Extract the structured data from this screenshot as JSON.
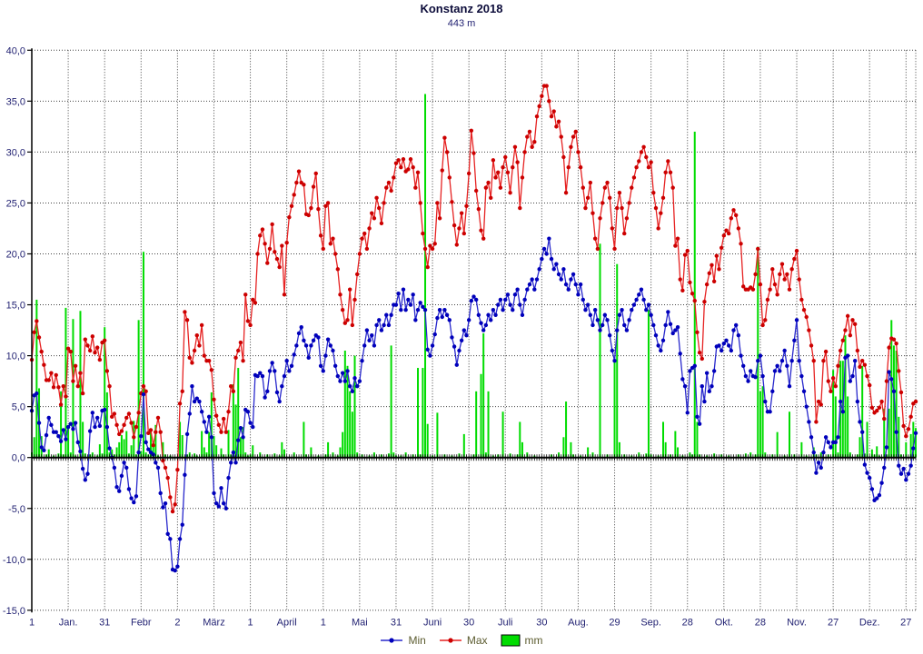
{
  "header": {
    "title": "Konstanz 2018",
    "subtitle": "443 m"
  },
  "legend": {
    "min_label": "Min",
    "max_label": "Max",
    "mm_label": "mm"
  },
  "colors": {
    "max_line": "#e62222",
    "max_dot": "#cc0000",
    "min_line": "#2828cc",
    "min_dot": "#0000bb",
    "mm_bar": "#00dc00",
    "axis": "#000000",
    "grid": "#444444",
    "tick_label": "#232373",
    "legend_text": "#5c5c30"
  },
  "chart_data": {
    "type": "line+bar",
    "title": "Konstanz 2018",
    "subtitle": "443 m",
    "ylabel": "",
    "xlabel": "",
    "ylim": [
      -15,
      40
    ],
    "ytick_step": 5,
    "ytick_labels": [
      "40,0",
      "35,0",
      "30,0",
      "25,0",
      "20,0",
      "15,0",
      "10,0",
      "5,0",
      "0,0",
      "-5,0",
      "-10,0",
      "-15,0"
    ],
    "ytick_values": [
      40,
      35,
      30,
      25,
      20,
      15,
      10,
      5,
      0,
      -5,
      -10,
      -15
    ],
    "xticks": [
      {
        "day": 1,
        "label": "1"
      },
      {
        "day": 16,
        "label": "Jan."
      },
      {
        "day": 31,
        "label": "31"
      },
      {
        "day": 46,
        "label": "Febr"
      },
      {
        "day": 61,
        "label": "2"
      },
      {
        "day": 76,
        "label": "März"
      },
      {
        "day": 91,
        "label": "1"
      },
      {
        "day": 106,
        "label": "April"
      },
      {
        "day": 121,
        "label": "1"
      },
      {
        "day": 136,
        "label": "Mai"
      },
      {
        "day": 151,
        "label": "31"
      },
      {
        "day": 166,
        "label": "Juni"
      },
      {
        "day": 181,
        "label": "30"
      },
      {
        "day": 196,
        "label": "Juli"
      },
      {
        "day": 211,
        "label": "30"
      },
      {
        "day": 226,
        "label": "Aug."
      },
      {
        "day": 241,
        "label": "29"
      },
      {
        "day": 256,
        "label": "Sep."
      },
      {
        "day": 271,
        "label": "28"
      },
      {
        "day": 286,
        "label": "Okt."
      },
      {
        "day": 301,
        "label": "28"
      },
      {
        "day": 316,
        "label": "Nov."
      },
      {
        "day": 331,
        "label": "27"
      },
      {
        "day": 346,
        "label": "Dez."
      },
      {
        "day": 361,
        "label": "27"
      }
    ],
    "grid": true,
    "legend_position": "bottom",
    "series": [
      {
        "name": "Max",
        "type": "line",
        "color_key": "max",
        "values": [
          9.6,
          12.3,
          13.4,
          11.8,
          10.4,
          9.1,
          7.6,
          7.6,
          8.3,
          6.9,
          8.1,
          6.9,
          5.2,
          7.0,
          6.0,
          10.7,
          10.4,
          7.5,
          9.0,
          7.0,
          8.3,
          6.3,
          11.6,
          11.0,
          10.5,
          11.9,
          10.3,
          10.8,
          9.6,
          11.3,
          11.5,
          8.5,
          7.0,
          4.0,
          4.3,
          3.2,
          2.3,
          2.6,
          3.2,
          3.9,
          4.3,
          3.4,
          2.0,
          3.0,
          4.4,
          6.3,
          7.0,
          6.5,
          2.4,
          2.7,
          1.2,
          2.5,
          3.9,
          2.5,
          -0.3,
          -1.0,
          -2.0,
          -3.9,
          -5.3,
          -4.6,
          -1.2,
          5.3,
          6.5,
          14.3,
          13.5,
          9.8,
          9.3,
          10.5,
          12.0,
          11.0,
          13.0,
          10.0,
          9.5,
          9.5,
          8.6,
          5.7,
          4.1,
          3.2,
          2.5,
          3.8,
          2.5,
          4.5,
          7.0,
          6.5,
          9.8,
          10.5,
          11.3,
          9.5,
          16.0,
          13.4,
          13.0,
          15.5,
          15.2,
          20.0,
          21.8,
          22.4,
          21.0,
          19.1,
          20.5,
          22.9,
          20.2,
          19.5,
          18.7,
          20.8,
          16.0,
          21.1,
          23.6,
          24.7,
          25.8,
          27.0,
          28.1,
          27.0,
          26.8,
          23.9,
          23.8,
          24.5,
          26.6,
          27.9,
          24.4,
          21.8,
          20.5,
          24.7,
          25.0,
          21.0,
          21.5,
          20.0,
          18.5,
          16.0,
          14.5,
          13.2,
          13.5,
          16.5,
          13.0,
          15.5,
          18.0,
          20.0,
          21.5,
          22.0,
          20.5,
          22.5,
          24.0,
          23.5,
          25.5,
          24.5,
          23.0,
          25.0,
          26.5,
          27.0,
          26.2,
          27.5,
          28.9,
          29.2,
          28.5,
          29.3,
          28.1,
          28.3,
          29.3,
          28.5,
          26.5,
          28.0,
          25.0,
          22.0,
          20.5,
          18.7,
          20.8,
          20.5,
          21.0,
          25.0,
          23.5,
          28.2,
          31.4,
          30.0,
          27.5,
          25.1,
          22.8,
          20.9,
          22.5,
          24.0,
          22.0,
          24.7,
          27.9,
          32.1,
          29.9,
          26.2,
          24.4,
          22.3,
          21.5,
          26.5,
          27.0,
          25.5,
          29.2,
          27.5,
          28.0,
          26.5,
          28.5,
          29.5,
          28.0,
          26.0,
          28.5,
          30.5,
          29.0,
          24.5,
          27.5,
          30.0,
          31.5,
          32.0,
          30.5,
          31.0,
          33.5,
          34.5,
          35.5,
          36.5,
          36.5,
          35.0,
          33.5,
          34.0,
          32.5,
          33.0,
          31.5,
          29.5,
          26.0,
          28.5,
          30.5,
          31.5,
          32.0,
          30.0,
          28.5,
          26.5,
          24.5,
          25.5,
          27.0,
          24.0,
          21.5,
          20.5,
          23.5,
          25.0,
          26.5,
          27.0,
          25.5,
          22.5,
          20.5,
          24.5,
          26.0,
          24.5,
          22.0,
          23.5,
          25.0,
          26.5,
          27.5,
          28.5,
          29.1,
          30.0,
          30.5,
          29.5,
          28.5,
          29.0,
          26.0,
          24.5,
          22.5,
          24.0,
          25.5,
          28.0,
          29.1,
          28.0,
          26.5,
          20.8,
          21.5,
          17.5,
          16.4,
          19.9,
          20.3,
          17.2,
          16.1,
          15.4,
          12.3,
          10.3,
          9.7,
          15.3,
          17.0,
          18.1,
          18.9,
          17.3,
          19.8,
          18.5,
          20.6,
          21.8,
          22.3,
          22.0,
          23.5,
          24.3,
          23.8,
          22.5,
          21.0,
          16.8,
          16.5,
          16.5,
          16.7,
          16.5,
          18.0,
          20.5,
          17.0,
          13.0,
          13.5,
          15.5,
          16.5,
          18.5,
          17.0,
          16.0,
          18.0,
          19.0,
          17.5,
          18.0,
          16.5,
          18.5,
          19.5,
          20.3,
          17.5,
          15.5,
          14.5,
          13.8,
          12.5,
          11.0,
          9.5,
          3.5,
          5.5,
          5.2,
          9.5,
          10.4,
          7.5,
          6.5,
          7.8,
          7.0,
          9.0,
          10.5,
          11.5,
          12.5,
          13.9,
          12.0,
          13.5,
          13.1,
          10.5,
          8.9,
          9.5,
          9.1,
          8.0,
          7.1,
          4.9,
          4.4,
          4.6,
          4.9,
          5.5,
          3.8,
          7.5,
          10.8,
          11.7,
          11.6,
          11.2,
          8.5,
          6.4,
          3.1,
          2.1,
          2.8,
          4.0,
          5.3,
          5.5
        ]
      },
      {
        "name": "Min",
        "type": "line",
        "color_key": "min",
        "values": [
          4.6,
          6.1,
          6.3,
          3.4,
          1.0,
          0.7,
          2.2,
          3.9,
          3.2,
          2.5,
          2.5,
          2.1,
          1.6,
          2.7,
          1.8,
          3.0,
          3.3,
          2.8,
          3.4,
          1.5,
          0.6,
          -1.1,
          -2.2,
          -1.6,
          2.6,
          4.4,
          3.0,
          3.9,
          3.1,
          4.6,
          4.7,
          3.0,
          0.9,
          0.0,
          -1.0,
          -2.9,
          -3.3,
          -1.8,
          -0.5,
          -1.0,
          -3.1,
          -4.0,
          -4.4,
          -3.8,
          0.5,
          2.1,
          6.2,
          1.5,
          0.8,
          0.5,
          0.3,
          -0.5,
          -1.0,
          -3.5,
          -4.9,
          -4.5,
          -7.5,
          -8.0,
          -11.0,
          -11.1,
          -10.7,
          -8.0,
          -6.6,
          -1.7,
          2.3,
          4.3,
          7.0,
          5.5,
          5.8,
          5.5,
          4.5,
          3.5,
          2.5,
          4.0,
          2.0,
          -3.5,
          -4.5,
          -4.8,
          -3.0,
          -4.5,
          -5.0,
          -2.0,
          -0.5,
          0.5,
          -0.5,
          1.7,
          2.9,
          2.0,
          4.7,
          4.5,
          3.4,
          3.0,
          8.1,
          8.0,
          8.3,
          8.0,
          5.9,
          6.5,
          8.5,
          9.3,
          8.5,
          6.4,
          5.5,
          7.0,
          8.0,
          9.5,
          8.5,
          9.0,
          10.1,
          11.0,
          12.2,
          12.8,
          11.5,
          11.0,
          9.8,
          11.0,
          11.5,
          12.0,
          11.8,
          9.0,
          8.5,
          10.0,
          11.6,
          11.0,
          10.5,
          9.0,
          8.0,
          7.5,
          8.3,
          7.5,
          8.5,
          7.0,
          6.5,
          7.8,
          7.0,
          7.5,
          9.5,
          11.0,
          12.5,
          11.5,
          12.0,
          11.0,
          13.0,
          13.5,
          12.5,
          13.0,
          14.0,
          13.0,
          14.0,
          15.0,
          15.0,
          16.1,
          14.5,
          16.5,
          14.5,
          15.5,
          15.0,
          16.0,
          13.5,
          14.5,
          15.2,
          14.8,
          14.5,
          10.6,
          10.0,
          11.0,
          12.1,
          13.7,
          14.5,
          13.8,
          14.5,
          14.0,
          13.5,
          11.8,
          10.9,
          9.1,
          10.5,
          11.5,
          12.5,
          12.0,
          13.5,
          15.4,
          15.8,
          15.5,
          14.0,
          13.2,
          12.5,
          13.0,
          14.0,
          13.5,
          14.5,
          14.0,
          15.0,
          15.5,
          14.5,
          15.5,
          16.0,
          15.0,
          14.5,
          16.0,
          16.5,
          15.0,
          14.0,
          15.5,
          16.5,
          17.0,
          17.5,
          16.5,
          17.5,
          18.5,
          19.5,
          20.5,
          20.0,
          21.5,
          19.5,
          18.5,
          19.0,
          18.0,
          17.5,
          18.5,
          17.0,
          16.5,
          17.5,
          18.0,
          17.0,
          16.0,
          17.0,
          15.5,
          14.5,
          15.0,
          14.0,
          13.0,
          14.5,
          13.5,
          12.5,
          13.0,
          14.0,
          13.5,
          12.0,
          10.5,
          9.5,
          12.5,
          14.0,
          14.5,
          13.0,
          12.5,
          13.5,
          14.5,
          15.0,
          15.5,
          16.0,
          16.5,
          15.5,
          14.5,
          15.0,
          14.0,
          13.0,
          12.0,
          11.0,
          10.5,
          11.5,
          13.0,
          14.3,
          13.1,
          12.2,
          12.5,
          12.8,
          10.2,
          7.7,
          7.0,
          4.4,
          8.5,
          8.8,
          9.0,
          4.0,
          3.3,
          7.0,
          5.5,
          8.3,
          6.5,
          7.0,
          8.5,
          10.9,
          11.0,
          10.5,
          11.2,
          11.5,
          11.0,
          10.5,
          12.5,
          13.0,
          12.0,
          10.0,
          9.0,
          8.0,
          7.5,
          8.5,
          8.0,
          7.9,
          9.5,
          10.0,
          8.0,
          5.5,
          4.5,
          4.5,
          6.5,
          8.5,
          9.0,
          8.5,
          9.5,
          10.5,
          9.0,
          7.0,
          9.5,
          11.5,
          13.5,
          9.5,
          8.0,
          6.5,
          5.0,
          3.5,
          2.0,
          0.5,
          -1.5,
          -0.5,
          -1.0,
          0.5,
          2.0,
          1.5,
          1.0,
          1.5,
          1.5,
          2.0,
          5.5,
          4.5,
          9.8,
          10.0,
          7.5,
          8.0,
          9.5,
          5.5,
          3.5,
          2.5,
          -0.7,
          -1.5,
          -2.0,
          -3.1,
          -4.2,
          -4.0,
          -3.7,
          -2.5,
          -1.0,
          1.0,
          8.4,
          7.7,
          6.5,
          2.5,
          -0.8,
          -1.6,
          -1.1,
          -2.2,
          -1.6,
          -0.8,
          0.9,
          2.4
        ]
      },
      {
        "name": "mm",
        "type": "bar",
        "color_key": "mm",
        "values": [
          0.5,
          2.0,
          15.5,
          6.8,
          2.1,
          0,
          0.3,
          0.8,
          0,
          0.2,
          0,
          0.4,
          6.5,
          0.3,
          14.7,
          3.0,
          0.5,
          13.6,
          0.2,
          0,
          14.4,
          3.5,
          0.4,
          0,
          0.3,
          0.5,
          0,
          0.2,
          1.3,
          0.4,
          12.8,
          6.4,
          0.5,
          0.8,
          0.3,
          1.0,
          1.5,
          2.2,
          1.8,
          2.6,
          0.4,
          1.2,
          3.6,
          0.3,
          13.5,
          0.6,
          20.2,
          0.5,
          0.3,
          2.7,
          1.4,
          3.2,
          0.2,
          0,
          1.5,
          0.3,
          0,
          0.2,
          0,
          0,
          0,
          3.5,
          2.2,
          0,
          0.3,
          0.5,
          0,
          0.4,
          0.2,
          0,
          2.6,
          1.0,
          0.5,
          2.5,
          6.4,
          2.1,
          1.2,
          0,
          0.9,
          0.3,
          0,
          2.7,
          0.3,
          7.2,
          5.2,
          8.8,
          2.0,
          3.0,
          0.5,
          0.2,
          0.3,
          1.2,
          0,
          0,
          0.5,
          0,
          0,
          0.3,
          0,
          0,
          0.4,
          0,
          0.2,
          1.5,
          0.8,
          0,
          0,
          0,
          0.5,
          0,
          0,
          0,
          3.5,
          0.3,
          0,
          1.0,
          0,
          0,
          0.2,
          0,
          0,
          0.3,
          1.5,
          0,
          0.5,
          0,
          0.2,
          1.0,
          2.5,
          10.5,
          9.0,
          6.5,
          4.5,
          10.0,
          0.5,
          0,
          0.3,
          0,
          0,
          0.2,
          0,
          0.5,
          0,
          0,
          0.3,
          0,
          0,
          0.4,
          11.0,
          0.5,
          0.2,
          0,
          0.2,
          0,
          0.5,
          0,
          0,
          0.3,
          0,
          8.8,
          0.3,
          8.8,
          35.7,
          3.3,
          0,
          0.2,
          0,
          4.4,
          0,
          0,
          0.3,
          0,
          0,
          0.2,
          0,
          0,
          0.4,
          0,
          2.3,
          0,
          0,
          0,
          0.3,
          6.5,
          0,
          8.2,
          12.2,
          0.5,
          6.5,
          0,
          0.2,
          0,
          0.3,
          0,
          4.5,
          0,
          0,
          0.4,
          0,
          0,
          0.3,
          3.5,
          1.5,
          0,
          0.5,
          0,
          0,
          0.2,
          0,
          0,
          0,
          0,
          0,
          0,
          0.3,
          0,
          0,
          0.5,
          0,
          2.0,
          5.5,
          0,
          1.5,
          0.3,
          0,
          0,
          0.2,
          0,
          0,
          1.0,
          0,
          0.5,
          0,
          0,
          21.0,
          0,
          0,
          0.3,
          0,
          0,
          9.5,
          19.0,
          1.5,
          0,
          0.3,
          0,
          0,
          0.2,
          0,
          0,
          0.5,
          0,
          0,
          0.4,
          14.5,
          0.3,
          0,
          0,
          0.2,
          0,
          3.5,
          1.5,
          0,
          0.3,
          0,
          2.6,
          1.0,
          0,
          0.2,
          0,
          0,
          0.5,
          0.3,
          32.0,
          3.5,
          0.3,
          0,
          0,
          0.2,
          0,
          0,
          0.4,
          0,
          0,
          0.3,
          0,
          0,
          0.2,
          0,
          0,
          0,
          0.3,
          0,
          0,
          0.4,
          0,
          0.5,
          0,
          0.3,
          20.7,
          6.5,
          7.0,
          0.5,
          0,
          0,
          0.3,
          0,
          2.5,
          0,
          0,
          0.2,
          0,
          4.5,
          0,
          0.3,
          0,
          0,
          1.5,
          0,
          0.2,
          0,
          0,
          1.0,
          0.3,
          0,
          0.5,
          0,
          0,
          0.3,
          0,
          8.6,
          6.0,
          0.5,
          9.5,
          9.5,
          12.0,
          6.0,
          0.5,
          0,
          0,
          0.3,
          2.0,
          9.0,
          0.4,
          3.5,
          0,
          0.8,
          0.3,
          1.1,
          0.2,
          0,
          4.8,
          0.3,
          4.8,
          13.5,
          11.0,
          10.5,
          4.0,
          0.3,
          0,
          1.5,
          0,
          2.3,
          3.5,
          2.9
        ]
      }
    ]
  }
}
